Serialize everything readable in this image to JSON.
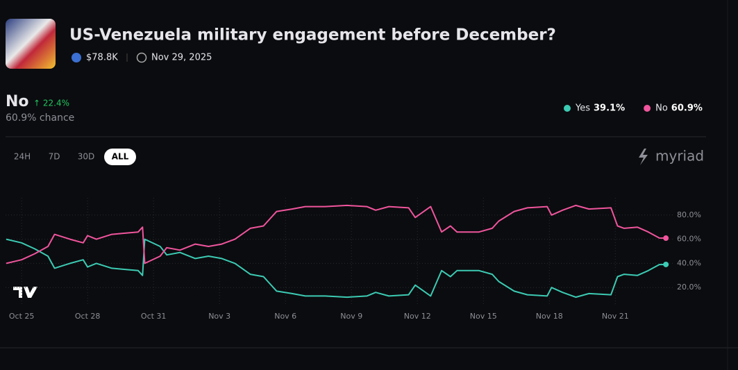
{
  "header": {
    "title": "US-Venezuela military engagement before December?",
    "volume": "$78.8K",
    "end_date": "Nov 29, 2025"
  },
  "outcome": {
    "name": "No",
    "change": "↑ 22.4%",
    "chance": "60.9% chance"
  },
  "range_buttons": [
    "24H",
    "7D",
    "30D",
    "ALL"
  ],
  "active_range": "ALL",
  "brand": "myriad",
  "chart_data": {
    "type": "line",
    "x": [
      -0.7,
      0,
      0.6,
      1.2,
      1.5,
      2.2,
      2.8,
      3.0,
      3.4,
      4.1,
      4.7,
      5.3,
      5.5,
      5.6,
      6.3,
      6.6,
      7.2,
      7.9,
      8.5,
      9.1,
      9.7,
      10.4,
      11.0,
      11.3,
      11.6,
      12.3,
      12.9,
      13.8,
      14.8,
      15.7,
      16.1,
      16.7,
      17.6,
      17.9,
      18.6,
      19.1,
      19.5,
      19.8,
      20.8,
      21.4,
      21.7,
      22.4,
      23.0,
      23.9,
      24.1,
      24.6,
      25.2,
      25.8,
      26.8,
      27.1,
      27.4,
      28.0,
      28.5,
      29.0,
      29.3
    ],
    "series": [
      {
        "name": "Yes",
        "color": "#3ccbb4",
        "value_label": "39.1%",
        "values": [
          60,
          57,
          52,
          46,
          36,
          40,
          43,
          37,
          40,
          36,
          35,
          34,
          30,
          60,
          54,
          47,
          49,
          44,
          46,
          44,
          40,
          31,
          29,
          23,
          17,
          15,
          13,
          13,
          12,
          13,
          16,
          13,
          14,
          22,
          13,
          34,
          29,
          34,
          34,
          31,
          25,
          17,
          14,
          13,
          20,
          16,
          12,
          15,
          14,
          29,
          31,
          30,
          34,
          39,
          39.1
        ]
      },
      {
        "name": "No",
        "color": "#f0559d",
        "value_label": "60.9%",
        "values": [
          40,
          43,
          48,
          54,
          64,
          60,
          57,
          63,
          60,
          64,
          65,
          66,
          70,
          40,
          46,
          53,
          51,
          56,
          54,
          56,
          60,
          69,
          71,
          77,
          83,
          85,
          87,
          87,
          88,
          87,
          84,
          87,
          86,
          78,
          87,
          66,
          71,
          66,
          66,
          69,
          75,
          83,
          86,
          87,
          80,
          84,
          88,
          85,
          86,
          71,
          69,
          70,
          66,
          61,
          60.9
        ]
      }
    ],
    "xlim": [
      -0.73,
      29.8
    ],
    "xticks": [
      {
        "value": 0,
        "label": "Oct 25"
      },
      {
        "value": 3,
        "label": "Oct 28"
      },
      {
        "value": 6,
        "label": "Oct 31"
      },
      {
        "value": 9,
        "label": "Nov 3"
      },
      {
        "value": 12,
        "label": "Nov 6"
      },
      {
        "value": 15,
        "label": "Nov 9"
      },
      {
        "value": 18,
        "label": "Nov 12"
      },
      {
        "value": 21,
        "label": "Nov 15"
      },
      {
        "value": 24,
        "label": "Nov 18"
      },
      {
        "value": 27,
        "label": "Nov 21"
      }
    ],
    "ylim": [
      0,
      100
    ],
    "yticks": [
      {
        "value": 20,
        "label": "20.0%"
      },
      {
        "value": 40,
        "label": "40.0%"
      },
      {
        "value": 60,
        "label": "60.0%"
      },
      {
        "value": 80,
        "label": "80.0%"
      }
    ],
    "grid": true
  }
}
